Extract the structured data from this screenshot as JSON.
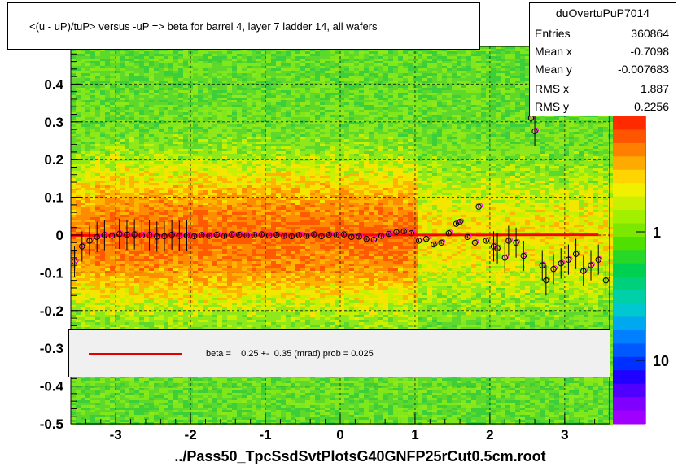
{
  "title": "<(u - uP)/tuP> versus  -uP => beta for barrel 4, layer 7 ladder 14, all wafers",
  "stats": {
    "name": "duOvertuPuP7014",
    "rows": [
      {
        "label": "Entries",
        "value": "360864"
      },
      {
        "label": "Mean x",
        "value": "-0.7098"
      },
      {
        "label": "Mean y",
        "value": "-0.007683"
      },
      {
        "label": "RMS x",
        "value": "1.887"
      },
      {
        "label": "RMS y",
        "value": "0.2256"
      }
    ]
  },
  "legend": {
    "text": "beta =    0.25 +-  0.35 (mrad) prob = 0.025",
    "line_color": "#e00000"
  },
  "xlabel": "../Pass50_TpcSsdSvtPlotsG40GNFP25rCut0.5cm.root",
  "colors": {
    "fit_line": "#ff0000",
    "profile_black": "#000000",
    "profile_magenta": "#ff00ff"
  },
  "chart_data": {
    "type": "heatmap",
    "xlim": [
      -3.6,
      3.6
    ],
    "ylim": [
      -0.5,
      0.5
    ],
    "x_ticks": [
      -3,
      -2,
      -1,
      0,
      1,
      2,
      3
    ],
    "y_ticks": [
      -0.5,
      -0.4,
      -0.3,
      -0.2,
      -0.1,
      0,
      0.1,
      0.2,
      0.3,
      0.4
    ],
    "x_tick_labels": [
      "-3",
      "-2",
      "-1",
      "0",
      "1",
      "2",
      "3"
    ],
    "y_tick_labels": [
      "-0.5",
      "-0.4",
      "-0.3",
      "-0.2",
      "-0.1",
      "0",
      "0.1",
      "0.2",
      "0.3",
      "0.4"
    ],
    "z_scale": "log",
    "z_tick_labels": [
      "1",
      "10"
    ],
    "z_tick_partial": "0",
    "grid": true,
    "fit_line": {
      "beta": 0.00025,
      "x_range": [
        -3.6,
        3.45
      ]
    },
    "profile_points": [
      {
        "x": -3.55,
        "y": -0.07
      },
      {
        "x": -3.45,
        "y": -0.03
      },
      {
        "x": -3.35,
        "y": -0.015
      },
      {
        "x": -3.25,
        "y": -0.005
      },
      {
        "x": -3.15,
        "y": 0.0
      },
      {
        "x": -3.05,
        "y": -0.002
      },
      {
        "x": -2.95,
        "y": 0.003
      },
      {
        "x": -2.85,
        "y": 0.001
      },
      {
        "x": -2.75,
        "y": 0.002
      },
      {
        "x": -2.65,
        "y": -0.001
      },
      {
        "x": -2.55,
        "y": 0.0
      },
      {
        "x": -2.45,
        "y": -0.004
      },
      {
        "x": -2.35,
        "y": -0.003
      },
      {
        "x": -2.25,
        "y": 0.001
      },
      {
        "x": -2.15,
        "y": -0.002
      },
      {
        "x": -2.05,
        "y": -0.001
      },
      {
        "x": -1.95,
        "y": -0.003
      },
      {
        "x": -1.85,
        "y": 0.0
      },
      {
        "x": -1.75,
        "y": -0.002
      },
      {
        "x": -1.65,
        "y": 0.001
      },
      {
        "x": -1.55,
        "y": -0.002
      },
      {
        "x": -1.45,
        "y": 0.002
      },
      {
        "x": -1.35,
        "y": 0.001
      },
      {
        "x": -1.25,
        "y": -0.001
      },
      {
        "x": -1.15,
        "y": 0.0
      },
      {
        "x": -1.05,
        "y": 0.002
      },
      {
        "x": -0.95,
        "y": -0.001
      },
      {
        "x": -0.85,
        "y": 0.001
      },
      {
        "x": -0.75,
        "y": -0.002
      },
      {
        "x": -0.65,
        "y": -0.003
      },
      {
        "x": -0.55,
        "y": 0.0
      },
      {
        "x": -0.45,
        "y": -0.002
      },
      {
        "x": -0.35,
        "y": 0.002
      },
      {
        "x": -0.25,
        "y": -0.003
      },
      {
        "x": -0.15,
        "y": 0.001
      },
      {
        "x": -0.05,
        "y": 0.0
      },
      {
        "x": 0.05,
        "y": 0.002
      },
      {
        "x": 0.15,
        "y": -0.005
      },
      {
        "x": 0.25,
        "y": -0.004
      },
      {
        "x": 0.35,
        "y": -0.01
      },
      {
        "x": 0.45,
        "y": -0.012
      },
      {
        "x": 0.55,
        "y": -0.002
      },
      {
        "x": 0.65,
        "y": 0.003
      },
      {
        "x": 0.75,
        "y": 0.008
      },
      {
        "x": 0.85,
        "y": 0.01
      },
      {
        "x": 0.95,
        "y": 0.005
      },
      {
        "x": 1.05,
        "y": -0.015
      },
      {
        "x": 1.15,
        "y": -0.01
      },
      {
        "x": 1.25,
        "y": -0.025
      },
      {
        "x": 1.35,
        "y": -0.02
      },
      {
        "x": 1.45,
        "y": 0.005
      },
      {
        "x": 1.55,
        "y": 0.03
      },
      {
        "x": 1.6,
        "y": 0.035
      },
      {
        "x": 1.7,
        "y": -0.005
      },
      {
        "x": 1.8,
        "y": -0.02
      },
      {
        "x": 1.85,
        "y": 0.075
      },
      {
        "x": 1.95,
        "y": -0.015
      },
      {
        "x": 2.05,
        "y": -0.03
      },
      {
        "x": 2.1,
        "y": -0.035
      },
      {
        "x": 2.2,
        "y": -0.06
      },
      {
        "x": 2.25,
        "y": -0.015
      },
      {
        "x": 2.35,
        "y": -0.02
      },
      {
        "x": 2.45,
        "y": -0.055
      },
      {
        "x": 2.55,
        "y": 0.31
      },
      {
        "x": 2.6,
        "y": 0.275
      },
      {
        "x": 2.7,
        "y": -0.08
      },
      {
        "x": 2.75,
        "y": -0.12
      },
      {
        "x": 2.85,
        "y": -0.09
      },
      {
        "x": 2.95,
        "y": -0.075
      },
      {
        "x": 3.05,
        "y": -0.065
      },
      {
        "x": 3.15,
        "y": -0.05
      },
      {
        "x": 3.25,
        "y": -0.095
      },
      {
        "x": 3.35,
        "y": -0.08
      },
      {
        "x": 3.45,
        "y": -0.065
      },
      {
        "x": 3.55,
        "y": -0.12
      }
    ]
  }
}
